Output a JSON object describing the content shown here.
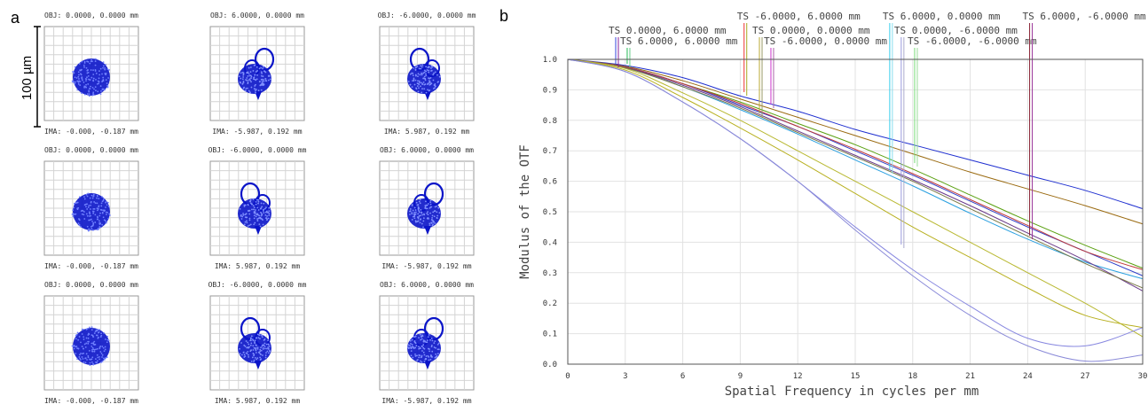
{
  "panel_a": {
    "label": "a",
    "scale_bar": "100 µm",
    "spot_color": "#0a14c8",
    "rows": [
      [
        {
          "obj": "OBJ: 0.0000, 0.0000 mm",
          "ima": "IMA: -0.000, -0.187 mm",
          "shape": "disk"
        },
        {
          "obj": "OBJ: 6.0000, 0.0000 mm",
          "ima": "IMA: -5.987, 0.192 mm",
          "shape": "comet"
        },
        {
          "obj": "OBJ: -6.0000, 0.0000 mm",
          "ima": "IMA: 5.987, 0.192 mm",
          "shape": "comet"
        }
      ],
      [
        {
          "obj": "OBJ: 0.0000, 0.0000 mm",
          "ima": "IMA: -0.000, -0.187 mm",
          "shape": "disk"
        },
        {
          "obj": "OBJ: -6.0000, 0.0000 mm",
          "ima": "IMA: 5.987, 0.192 mm",
          "shape": "comet"
        },
        {
          "obj": "OBJ: 6.0000, 0.0000 mm",
          "ima": "IMA: -5.987, 0.192 mm",
          "shape": "comet"
        }
      ],
      [
        {
          "obj": "OBJ: 0.0000, 0.0000 mm",
          "ima": "IMA: -0.000, -0.187 mm",
          "shape": "disk"
        },
        {
          "obj": "OBJ: -6.0000, 0.0000 mm",
          "ima": "IMA: 5.987, 0.192 mm",
          "shape": "comet"
        },
        {
          "obj": "OBJ: 6.0000, 0.0000 mm",
          "ima": "IMA: -5.987, 0.192 mm",
          "shape": "comet"
        }
      ]
    ]
  },
  "chart_data": {
    "type": "line",
    "panel_label": "b",
    "xlabel": "Spatial Frequency in cycles per mm",
    "ylabel": "Modulus of the OTF",
    "xlim": [
      0,
      30
    ],
    "ylim": [
      0,
      1
    ],
    "xticks": [
      0,
      3,
      6,
      9,
      12,
      15,
      18,
      21,
      24,
      27,
      30
    ],
    "yticks": [
      0.0,
      0.1,
      0.2,
      0.3,
      0.4,
      0.5,
      0.6,
      0.7,
      0.8,
      0.9,
      1.0
    ],
    "grid": true,
    "field_labels": [
      {
        "text": "TS 0.0000, 6.0000 mm",
        "x": 2.5,
        "colors": [
          "#3344dd",
          "#882299"
        ]
      },
      {
        "text": "TS 6.0000, 6.0000 mm",
        "x": 3.1,
        "colors": [
          "#22bb55",
          "#66cc88"
        ]
      },
      {
        "text": "TS -6.0000, 6.0000 mm",
        "x": 9.2,
        "colors": [
          "#ee3333",
          "#aaaa22"
        ]
      },
      {
        "text": "TS 0.0000, 0.0000 mm",
        "x": 10.0,
        "colors": [
          "#bbaa33",
          "#999966"
        ]
      },
      {
        "text": "TS -6.0000, 0.0000 mm",
        "x": 10.6,
        "colors": [
          "#cc33cc",
          "#aa66aa"
        ]
      },
      {
        "text": "TS 6.0000, 0.0000 mm",
        "x": 16.8,
        "colors": [
          "#33ccee",
          "#88ddee"
        ]
      },
      {
        "text": "TS 0.0000, -6.0000 mm",
        "x": 17.4,
        "colors": [
          "#9999dd",
          "#aaaacc"
        ]
      },
      {
        "text": "TS -6.0000, -6.0000 mm",
        "x": 18.1,
        "colors": [
          "#77dd77",
          "#99dd99"
        ]
      },
      {
        "text": "TS 6.0000, -6.0000 mm",
        "x": 24.1,
        "colors": [
          "#882233",
          "#993399"
        ]
      }
    ],
    "x": [
      0,
      3,
      6,
      9,
      12,
      15,
      18,
      21,
      24,
      27,
      30
    ],
    "series": [
      {
        "color": "#1f2fd0",
        "values": [
          1.0,
          0.98,
          0.94,
          0.88,
          0.83,
          0.77,
          0.72,
          0.67,
          0.62,
          0.57,
          0.51
        ]
      },
      {
        "color": "#9a6a10",
        "values": [
          1.0,
          0.977,
          0.93,
          0.87,
          0.81,
          0.75,
          0.69,
          0.63,
          0.575,
          0.52,
          0.46
        ]
      },
      {
        "color": "#5aa010",
        "values": [
          1.0,
          0.975,
          0.92,
          0.86,
          0.79,
          0.72,
          0.64,
          0.555,
          0.47,
          0.39,
          0.315
        ]
      },
      {
        "color": "#2f3fc8",
        "values": [
          1.0,
          0.975,
          0.92,
          0.85,
          0.78,
          0.7,
          0.62,
          0.535,
          0.45,
          0.37,
          0.29
        ]
      },
      {
        "color": "#c03a3a",
        "values": [
          1.0,
          0.975,
          0.92,
          0.855,
          0.78,
          0.705,
          0.625,
          0.54,
          0.455,
          0.37,
          0.31
        ]
      },
      {
        "color": "#2aa0e0",
        "values": [
          1.0,
          0.972,
          0.91,
          0.835,
          0.755,
          0.67,
          0.585,
          0.495,
          0.41,
          0.335,
          0.28
        ]
      },
      {
        "color": "#6a3a8a",
        "values": [
          1.0,
          0.973,
          0.915,
          0.845,
          0.765,
          0.685,
          0.605,
          0.52,
          0.43,
          0.34,
          0.24
        ]
      },
      {
        "color": "#777744",
        "values": [
          1.0,
          0.972,
          0.91,
          0.84,
          0.76,
          0.68,
          0.6,
          0.51,
          0.42,
          0.33,
          0.25
        ]
      },
      {
        "color": "#b8b830",
        "values": [
          1.0,
          0.97,
          0.89,
          0.8,
          0.7,
          0.6,
          0.5,
          0.4,
          0.3,
          0.2,
          0.09
        ]
      },
      {
        "color": "#b8b020",
        "values": [
          1.0,
          0.965,
          0.875,
          0.775,
          0.67,
          0.56,
          0.45,
          0.35,
          0.25,
          0.16,
          0.12
        ]
      },
      {
        "color": "#8888e0",
        "values": [
          1.0,
          0.96,
          0.86,
          0.74,
          0.6,
          0.45,
          0.31,
          0.19,
          0.085,
          0.06,
          0.12
        ]
      },
      {
        "color": "#8a8ad8",
        "values": [
          1.0,
          0.96,
          0.86,
          0.74,
          0.6,
          0.44,
          0.29,
          0.16,
          0.06,
          0.01,
          0.03
        ]
      }
    ]
  }
}
